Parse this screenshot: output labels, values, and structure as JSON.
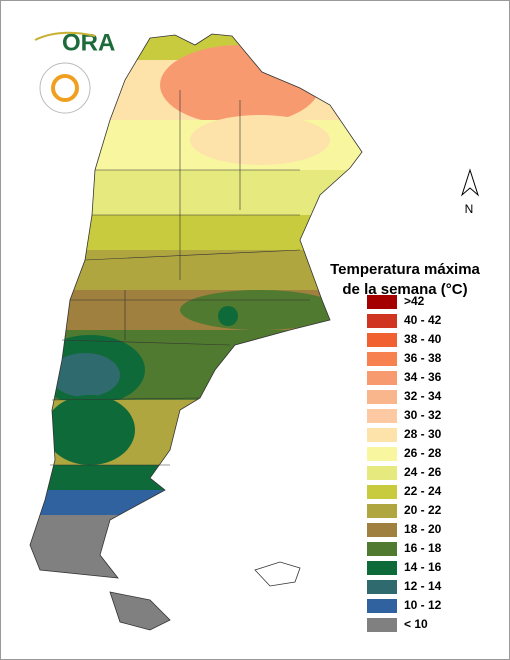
{
  "logo": {
    "text": "ORA"
  },
  "north_arrow": {
    "label": "N"
  },
  "legend": {
    "title": [
      "Temperatura máxima",
      "de la semana (°C)"
    ],
    "items": [
      {
        "label": ">42",
        "color": "#a50000"
      },
      {
        "label": "40 - 42",
        "color": "#cf3520"
      },
      {
        "label": "38 - 40",
        "color": "#f06030"
      },
      {
        "label": "36 - 38",
        "color": "#f7824f"
      },
      {
        "label": "34 - 36",
        "color": "#f89a70"
      },
      {
        "label": "32 - 34",
        "color": "#f9b68c"
      },
      {
        "label": "30 - 32",
        "color": "#fcc9a2"
      },
      {
        "label": "28 - 30",
        "color": "#fde2aa"
      },
      {
        "label": "26 - 28",
        "color": "#f8f7a0"
      },
      {
        "label": "24 - 26",
        "color": "#e6ea7e"
      },
      {
        "label": "22 - 24",
        "color": "#c8cb3e"
      },
      {
        "label": "20 - 22",
        "color": "#b0a63f"
      },
      {
        "label": "18 - 20",
        "color": "#9f803e"
      },
      {
        "label": "16 - 18",
        "color": "#4f7a2f"
      },
      {
        "label": "14 - 16",
        "color": "#0f6a39"
      },
      {
        "label": "12 - 14",
        "color": "#2f6a6e"
      },
      {
        "label": "10 - 12",
        "color": "#3062a0"
      },
      {
        "label": "< 10",
        "color": "#808080"
      }
    ]
  }
}
